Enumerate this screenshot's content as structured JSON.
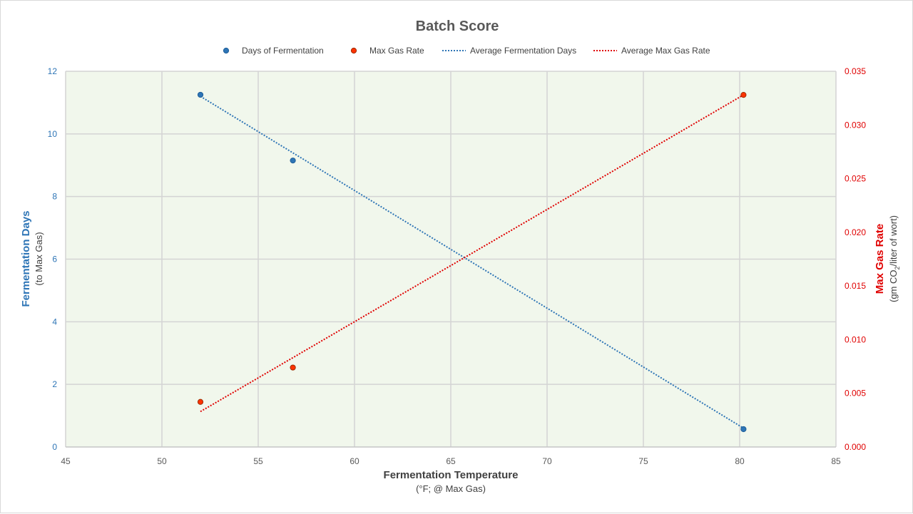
{
  "chart_data": {
    "type": "scatter",
    "title": "Batch Score",
    "xlabel": "Fermentation Temperature",
    "xlabel_sub": "(°F; @ Max Gas)",
    "ylabel_left": "Fermentation Days",
    "ylabel_left_sub": "(to Max Gas)",
    "ylabel_right": "Max Gas Rate",
    "ylabel_right_sub_prefix": "(gm CO",
    "ylabel_right_sub_subscript": "2",
    "ylabel_right_sub_suffix": "/liter of wort)",
    "xlim": [
      45,
      85
    ],
    "xticks": [
      "45",
      "50",
      "55",
      "60",
      "65",
      "70",
      "75",
      "80",
      "85"
    ],
    "ylim_left": [
      0,
      12
    ],
    "yticks_left": [
      "0",
      "2",
      "4",
      "6",
      "8",
      "10",
      "12"
    ],
    "ylim_right": [
      0,
      0.035
    ],
    "yticks_right": [
      "0.000",
      "0.005",
      "0.010",
      "0.015",
      "0.020",
      "0.025",
      "0.030",
      "0.035"
    ],
    "grid": true,
    "legend_position": "top",
    "plot_background": "#f1f7ec",
    "series": [
      {
        "name": "Days of Fermentation",
        "kind": "points",
        "axis": "left",
        "color": "#2e75b6",
        "points": [
          [
            52,
            11.25
          ],
          [
            56.8,
            9.15
          ],
          [
            80.2,
            0.57
          ]
        ]
      },
      {
        "name": "Max Gas Rate",
        "kind": "points",
        "axis": "right",
        "color": "#ff3300",
        "points": [
          [
            52,
            0.0042
          ],
          [
            56.8,
            0.0074
          ],
          [
            80.2,
            0.0328
          ]
        ]
      },
      {
        "name": "Average Fermentation Days",
        "kind": "trend",
        "axis": "left",
        "color": "#2e75b6",
        "points": [
          [
            52,
            11.2
          ],
          [
            80.2,
            0.6
          ]
        ]
      },
      {
        "name": "Average Max Gas Rate",
        "kind": "trend",
        "axis": "right",
        "color": "#e00000",
        "points": [
          [
            52,
            0.0033
          ],
          [
            80.2,
            0.0328
          ]
        ]
      }
    ]
  }
}
